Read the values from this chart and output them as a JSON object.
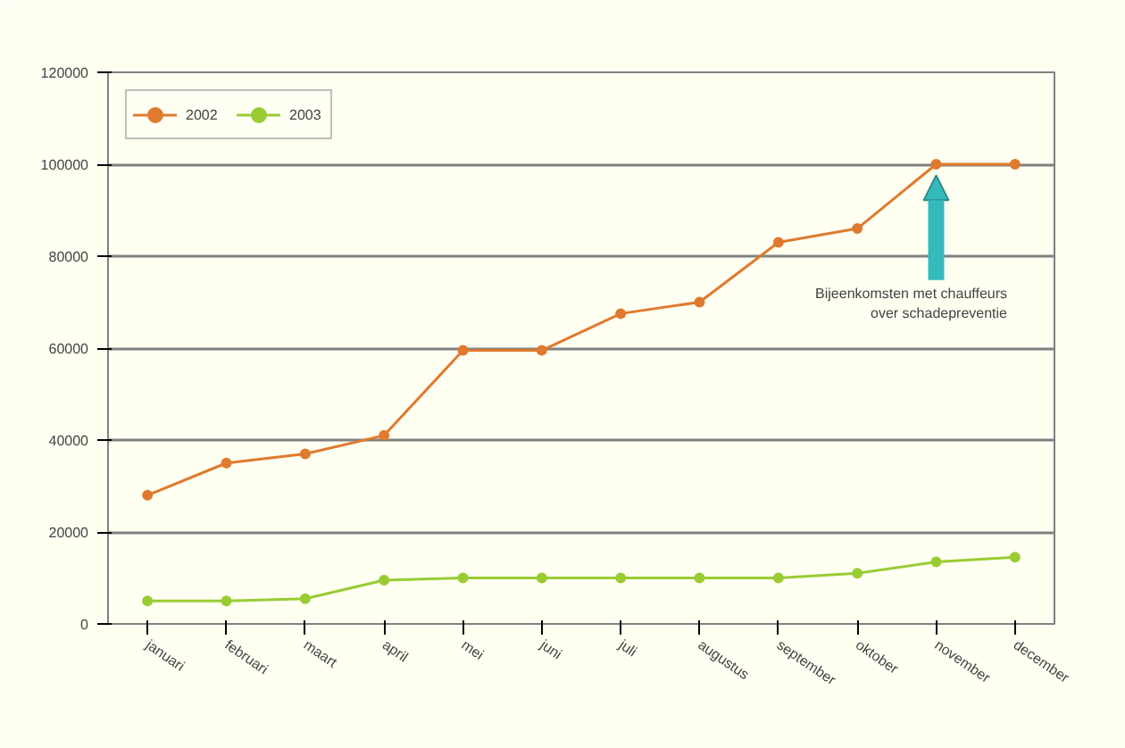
{
  "chart_data": {
    "type": "line",
    "categories": [
      "januari",
      "februari",
      "maart",
      "april",
      "mei",
      "juni",
      "juli",
      "augustus",
      "september",
      "oktober",
      "november",
      "december"
    ],
    "series": [
      {
        "name": "2002",
        "color": "#e07a2e",
        "values": [
          28000,
          35000,
          37000,
          41000,
          59500,
          59500,
          67500,
          70000,
          83000,
          86000,
          100000,
          100000
        ]
      },
      {
        "name": "2003",
        "color": "#99cc33",
        "values": [
          5000,
          5000,
          5500,
          9500,
          10000,
          10000,
          10000,
          10000,
          10000,
          11000,
          13500,
          14500
        ]
      }
    ],
    "ylim": [
      0,
      120000
    ],
    "yticks": [
      0,
      20000,
      40000,
      60000,
      80000,
      100000,
      120000
    ],
    "grid": "y",
    "legend": "top left",
    "marker": "circle",
    "line_style": "solid",
    "annotations": [
      {
        "text": "Bijeenkomsten met chauffeurs over schadepreventie",
        "x": "november",
        "y": 100000
      }
    ]
  }
}
